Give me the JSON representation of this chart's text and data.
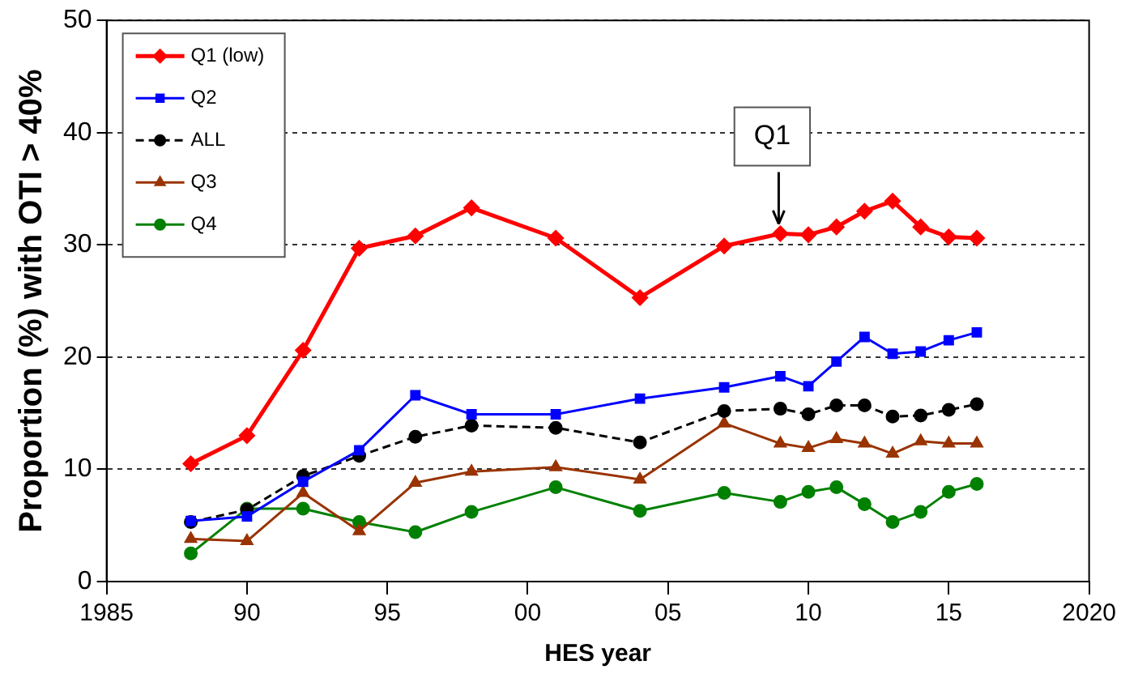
{
  "chart_data": {
    "type": "line",
    "xlabel": "HES year",
    "ylabel": "Proportion (%) with OTI > 40%",
    "x": [
      1988,
      1990,
      1992,
      1994,
      1996,
      1998,
      2001,
      2004,
      2007,
      2009,
      2010,
      2011,
      2012,
      2013,
      2014,
      2015,
      2016
    ],
    "series": [
      {
        "name": "Q1 (low)",
        "color": "#ff0000",
        "marker": "diamond",
        "line_style": "solid",
        "values": [
          10.5,
          13.0,
          20.6,
          29.7,
          30.8,
          33.3,
          30.6,
          25.3,
          29.9,
          31.0,
          30.9,
          31.6,
          33.0,
          33.9,
          31.6,
          30.7,
          30.6
        ]
      },
      {
        "name": "Q2",
        "color": "#0000ff",
        "marker": "square",
        "line_style": "solid",
        "values": [
          5.4,
          5.8,
          8.9,
          11.7,
          16.6,
          14.9,
          14.9,
          16.3,
          17.3,
          18.3,
          17.4,
          19.6,
          21.8,
          20.3,
          20.5,
          21.5,
          22.2
        ]
      },
      {
        "name": "ALL",
        "color": "#000000",
        "marker": "circle",
        "line_style": "dashed",
        "values": [
          5.3,
          6.4,
          9.4,
          11.2,
          12.9,
          13.9,
          13.7,
          12.4,
          15.2,
          15.4,
          14.9,
          15.7,
          15.7,
          14.7,
          14.8,
          15.3,
          15.8
        ]
      },
      {
        "name": "Q3",
        "color": "#993300",
        "marker": "triangle",
        "line_style": "solid",
        "values": [
          3.8,
          3.6,
          7.9,
          4.5,
          8.8,
          9.8,
          10.2,
          9.1,
          14.1,
          12.3,
          11.9,
          12.7,
          12.3,
          11.4,
          12.5,
          12.3,
          12.3
        ]
      },
      {
        "name": "Q4",
        "color": "#008000",
        "marker": "circle",
        "line_style": "solid",
        "values": [
          2.5,
          6.5,
          6.5,
          5.3,
          4.4,
          6.2,
          8.4,
          6.3,
          7.9,
          7.1,
          8.0,
          8.4,
          6.9,
          5.3,
          6.2,
          8.0,
          8.7
        ]
      }
    ],
    "xlim": [
      1985,
      2020
    ],
    "xticks": [
      1985,
      {
        "value": 1990,
        "label": "90"
      },
      {
        "value": 1995,
        "label": "95"
      },
      {
        "value": 2000,
        "label": "00"
      },
      {
        "value": 2005,
        "label": "05"
      },
      {
        "value": 2010,
        "label": "10"
      },
      {
        "value": 2015,
        "label": "15"
      },
      2020
    ],
    "ylim": [
      0,
      50
    ],
    "yticks": [
      0,
      10,
      20,
      30,
      40,
      50
    ],
    "grid": "y",
    "legend": "top left",
    "annotations": [
      {
        "text": "Q1",
        "x": 2009,
        "y": 31.0
      }
    ]
  }
}
